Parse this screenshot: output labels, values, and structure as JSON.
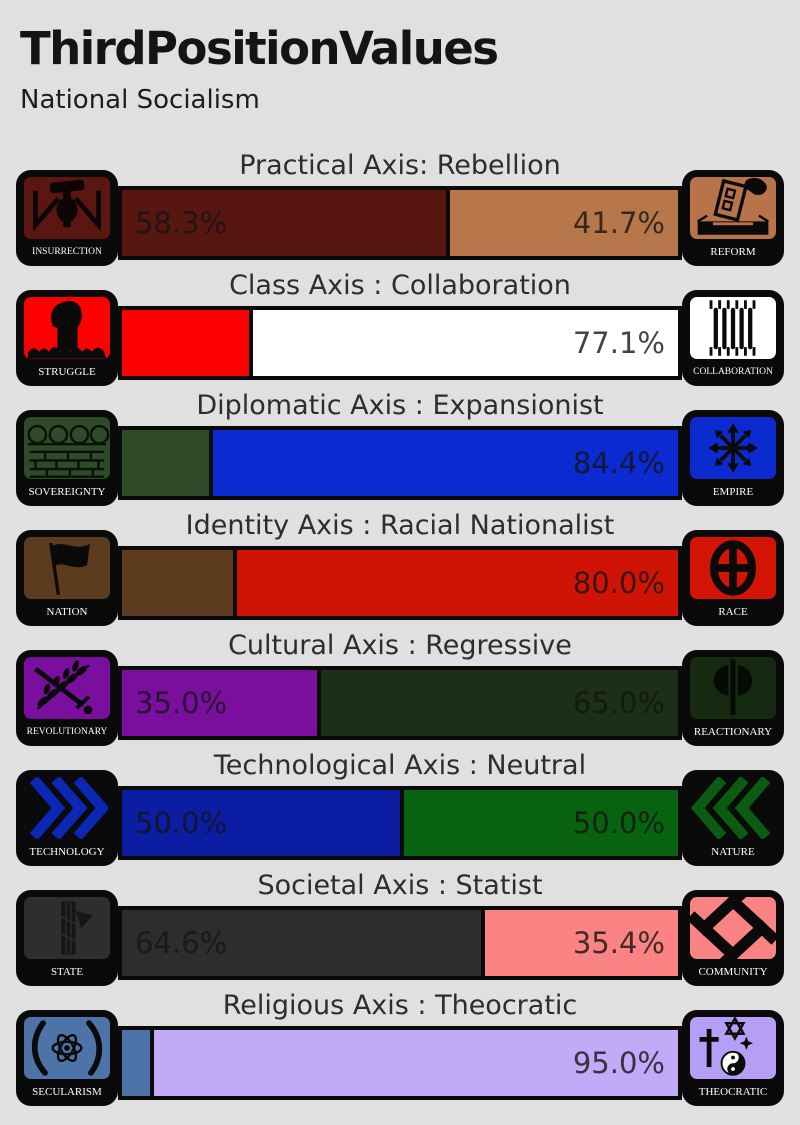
{
  "page": {
    "title": "ThirdPositionValues",
    "subtitle": "National Socialism",
    "background_color": "#e0e0e0"
  },
  "chart_data": {
    "type": "bar",
    "subtype": "horizontal-stacked-percent",
    "title": "ThirdPositionValues",
    "subtitle": "National Socialism",
    "categories": [
      "Practical",
      "Class",
      "Diplomatic",
      "Identity",
      "Cultural",
      "Technological",
      "Societal",
      "Religious"
    ],
    "series": [
      {
        "name": "left-pole",
        "labels": [
          "INSURRECTION",
          "STRUGGLE",
          "SOVEREIGNTY",
          "NATION",
          "REVOLUTIONARY",
          "TECHNOLOGY",
          "STATE",
          "SECULARISM"
        ],
        "values": [
          58.3,
          22.9,
          15.6,
          20.0,
          35.0,
          50.0,
          64.6,
          5.0
        ]
      },
      {
        "name": "right-pole",
        "labels": [
          "REFORM",
          "COLLABORATION",
          "EMPIRE",
          "RACE",
          "REACTIONARY",
          "NATURE",
          "COMMUNITY",
          "THEOCRATIC"
        ],
        "values": [
          41.7,
          77.1,
          84.4,
          80.0,
          65.0,
          50.0,
          35.4,
          95.0
        ]
      }
    ],
    "xlim": [
      0,
      100
    ],
    "grid": false,
    "legend": false
  },
  "axes": [
    {
      "title": "Practical Axis: Rebellion",
      "left": {
        "label": "INSURRECTION",
        "icon": "hammer-fist-icon",
        "tile_color": "#5a1712",
        "icon_color": "#0d0505",
        "bar_color": "#581611",
        "percent": 58.3,
        "percent_label": "58.3%"
      },
      "right": {
        "label": "REFORM",
        "icon": "ballot-box-icon",
        "tile_color": "#b8734a",
        "icon_color": "#0a0a0a",
        "bar_color": "#b8774b",
        "percent": 41.7,
        "percent_label": "41.7%"
      }
    },
    {
      "title": "Class Axis : Collaboration",
      "left": {
        "label": "STRUGGLE",
        "icon": "raised-fist-icon",
        "tile_color": "#fe0000",
        "icon_color": "#0a0a0a",
        "bar_color": "#fe0000",
        "percent": 22.9,
        "percent_label": null
      },
      "right": {
        "label": "COLLABORATION",
        "icon": "bound-rods-icon",
        "tile_color": "#ffffff",
        "icon_color": "#0a0a0a",
        "bar_color": "#ffffff",
        "percent": 77.1,
        "percent_label": "77.1%"
      }
    },
    {
      "title": "Diplomatic Axis : Expansionist",
      "left": {
        "label": "SOVEREIGNTY",
        "icon": "barbed-wire-wall-icon",
        "tile_color": "#2e4a28",
        "icon_color": "#0a0f08",
        "bar_color": "#2e4a28",
        "percent": 15.6,
        "percent_label": null
      },
      "right": {
        "label": "EMPIRE",
        "icon": "chaos-star-icon",
        "tile_color": "#0b2bd1",
        "icon_color": "#0a0a0a",
        "bar_color": "#0b2bd1",
        "percent": 84.4,
        "percent_label": "84.4%"
      }
    },
    {
      "title": "Identity Axis : Racial Nationalist",
      "left": {
        "label": "NATION",
        "icon": "black-flag-icon",
        "tile_color": "#5d3b1e",
        "icon_color": "#0a0a0a",
        "bar_color": "#5d3b1e",
        "percent": 20.0,
        "percent_label": null
      },
      "right": {
        "label": "RACE",
        "icon": "celtic-cross-icon",
        "tile_color": "#d21405",
        "icon_color": "#0a0a0a",
        "bar_color": "#cf1406",
        "percent": 80.0,
        "percent_label": "80.0%"
      }
    },
    {
      "title": "Cultural Axis : Regressive",
      "left": {
        "label": "REVOLUTIONARY",
        "icon": "sword-laurel-icon",
        "tile_color": "#7a0f9e",
        "icon_color": "#0a0a0a",
        "bar_color": "#7a0f9e",
        "percent": 35.0,
        "percent_label": "35.0%"
      },
      "right": {
        "label": "REACTIONARY",
        "icon": "labrys-icon",
        "tile_color": "#152a11",
        "icon_color": "#060a05",
        "bar_color": "#1c3018",
        "percent": 65.0,
        "percent_label": "65.0%"
      }
    },
    {
      "title": "Technological Axis : Neutral",
      "left": {
        "label": "TECHNOLOGY",
        "icon": "tech-chevrons-icon",
        "tile_color": "#0a0a0a",
        "icon_color": "#0a28b4",
        "bar_color": "#0b1da2",
        "percent": 50.0,
        "percent_label": "50.0%"
      },
      "right": {
        "label": "NATURE",
        "icon": "nature-chevrons-icon",
        "tile_color": "#0a0a0a",
        "icon_color": "#0a5c10",
        "bar_color": "#086311",
        "percent": 50.0,
        "percent_label": "50.0%"
      }
    },
    {
      "title": "Societal Axis : Statist",
      "left": {
        "label": "STATE",
        "icon": "fasces-icon",
        "tile_color": "#2e2e2e",
        "icon_color": "#161616",
        "bar_color": "#2d2d2d",
        "percent": 64.6,
        "percent_label": "64.6%"
      },
      "right": {
        "label": "COMMUNITY",
        "icon": "linked-arms-icon",
        "tile_color": "#fb8383",
        "icon_color": "#0a0a0a",
        "bar_color": "#fb8383",
        "percent": 35.4,
        "percent_label": "35.4%"
      }
    },
    {
      "title": "Religious Axis : Theocratic",
      "left": {
        "label": "SECULARISM",
        "icon": "atom-icon",
        "tile_color": "#4e73a8",
        "icon_color": "#0a0a0a",
        "bar_color": "#4e73a8",
        "percent": 5.0,
        "percent_label": null
      },
      "right": {
        "label": "THEOCRATIC",
        "icon": "religious-symbols-icon",
        "tile_color": "#b59ef5",
        "icon_color": "#0a0a0a",
        "bar_color": "#c2aaf8",
        "percent": 95.0,
        "percent_label": "95.0%"
      }
    }
  ]
}
